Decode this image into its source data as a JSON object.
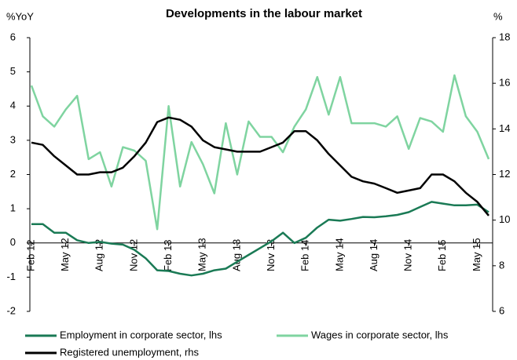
{
  "chart_data": {
    "type": "line",
    "title": "Developments in the labour market",
    "y_label": "%YoY",
    "y2_label": "%",
    "categories": [
      "Feb 12",
      null,
      null,
      "May 12",
      null,
      null,
      "Aug 12",
      null,
      null,
      "Nov 12",
      null,
      null,
      "Feb 13",
      null,
      null,
      "May 13",
      null,
      null,
      "Aug 13",
      null,
      null,
      "Nov 13",
      null,
      null,
      "Feb 14",
      null,
      null,
      "May 14",
      null,
      null,
      "Aug 14",
      null,
      null,
      "Nov 14",
      null,
      null,
      "Feb 15",
      null,
      null,
      "May 15",
      null
    ],
    "series": [
      {
        "name": "Employment in corporate sector, lhs",
        "color": "#1a7a55",
        "values": [
          0.55,
          0.55,
          0.3,
          0.3,
          0.08,
          0.0,
          0.03,
          -0.02,
          -0.05,
          -0.2,
          -0.45,
          -0.8,
          -0.82,
          -0.9,
          -0.95,
          -0.9,
          -0.8,
          -0.75,
          -0.55,
          -0.35,
          -0.15,
          0.05,
          0.3,
          0.0,
          0.15,
          0.45,
          0.68,
          0.65,
          0.7,
          0.76,
          0.75,
          0.78,
          0.82,
          0.9,
          1.05,
          1.2,
          1.15,
          1.1,
          1.1,
          1.12,
          0.9
        ]
      },
      {
        "name": "Wages in corporate sector, lhs",
        "color": "#7fd4a0",
        "values": [
          4.6,
          3.7,
          3.4,
          3.9,
          4.3,
          2.45,
          2.65,
          1.65,
          2.8,
          2.7,
          2.4,
          0.4,
          4.0,
          1.65,
          2.95,
          2.3,
          1.45,
          3.5,
          2.0,
          3.55,
          3.1,
          3.1,
          2.65,
          3.4,
          3.9,
          4.85,
          3.75,
          4.85,
          3.5,
          3.5,
          3.5,
          3.4,
          3.7,
          2.75,
          3.65,
          3.55,
          3.25,
          4.9,
          3.7,
          3.25,
          2.45
        ]
      },
      {
        "name": "Registered unemployment, rhs",
        "color": "#000000",
        "axis": "y2",
        "values": [
          13.4,
          13.3,
          12.8,
          12.4,
          12.0,
          12.0,
          12.1,
          12.1,
          12.3,
          12.8,
          13.4,
          14.3,
          14.5,
          14.4,
          14.1,
          13.5,
          13.2,
          13.1,
          13.0,
          13.0,
          13.0,
          13.2,
          13.4,
          13.9,
          13.9,
          13.5,
          12.9,
          12.4,
          11.9,
          11.7,
          11.6,
          11.4,
          11.2,
          11.3,
          11.4,
          12.0,
          12.0,
          11.7,
          11.2,
          10.8,
          10.2
        ]
      }
    ],
    "ylim": [
      -2,
      6
    ],
    "yticks": [
      -2,
      -1,
      0,
      1,
      2,
      3,
      4,
      5,
      6
    ],
    "y2lim": [
      6,
      18
    ],
    "y2ticks": [
      6,
      8,
      10,
      12,
      14,
      16,
      18
    ]
  }
}
